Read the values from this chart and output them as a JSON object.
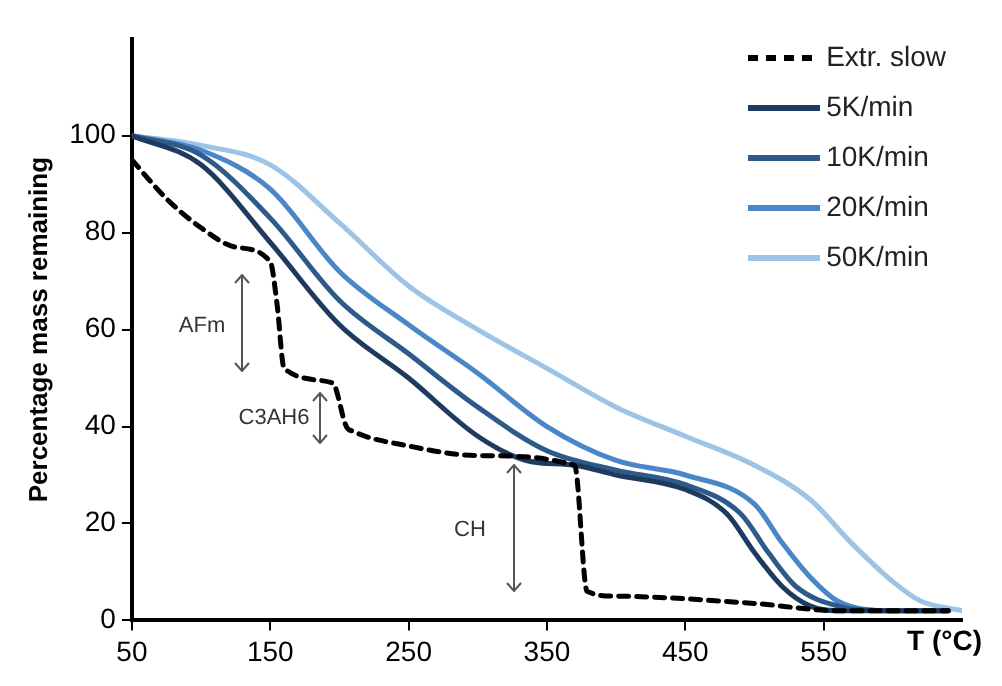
{
  "chart_data": {
    "type": "line",
    "xlabel": "T (°C)",
    "ylabel": "Percentage mass remaining",
    "xlim": [
      50,
      650
    ],
    "xticks": [
      50,
      150,
      250,
      350,
      450,
      550
    ],
    "ylim": [
      0,
      120
    ],
    "yticks": [
      0,
      20,
      40,
      60,
      80,
      100
    ],
    "grid": false,
    "legend": "top right",
    "marker": "none",
    "line_style": "solid",
    "annotations": [
      "AFm",
      "C3AH6",
      "CH"
    ],
    "series": [
      {
        "name": "Extr. slow",
        "color": "#000000",
        "line_style": "dashed",
        "x": [
          50,
          75,
          100,
          125,
          150,
          155,
          160,
          195,
          205,
          210,
          250,
          300,
          370,
          379,
          400,
          500,
          560,
          640
        ],
        "values": [
          95,
          87,
          81,
          77,
          74,
          65,
          52,
          49,
          40,
          39,
          36,
          34,
          32,
          6,
          5,
          3.5,
          2,
          2
        ]
      },
      {
        "name": "5K/min",
        "color": "#1f3a5f",
        "x": [
          50,
          100,
          150,
          200,
          250,
          300,
          335,
          370,
          400,
          450,
          480,
          500,
          520,
          540,
          560,
          640
        ],
        "values": [
          100,
          94,
          78,
          61,
          50,
          38,
          33,
          32,
          30,
          27,
          22,
          14,
          7,
          3,
          2,
          2
        ]
      },
      {
        "name": "10K/min",
        "color": "#2e5a8a",
        "x": [
          50,
          100,
          150,
          200,
          250,
          300,
          350,
          400,
          450,
          490,
          510,
          530,
          560,
          600,
          640
        ],
        "values": [
          100,
          96,
          83,
          66,
          55,
          44,
          35,
          31,
          28,
          22,
          14,
          7,
          3,
          2,
          2
        ]
      },
      {
        "name": "20K/min",
        "color": "#4a86c8",
        "x": [
          50,
          100,
          150,
          200,
          250,
          300,
          350,
          400,
          450,
          500,
          520,
          540,
          560,
          600,
          640
        ],
        "values": [
          100,
          97,
          89,
          72,
          61,
          51,
          40,
          33,
          30,
          24,
          16,
          9,
          4,
          2,
          2
        ]
      },
      {
        "name": "50K/min",
        "color": "#9dc3e6",
        "x": [
          50,
          100,
          150,
          200,
          250,
          300,
          350,
          400,
          450,
          500,
          540,
          570,
          600,
          620,
          650
        ],
        "values": [
          100,
          98,
          94,
          82,
          69,
          60,
          52,
          44,
          38,
          32,
          25,
          16,
          8,
          4,
          2
        ]
      }
    ]
  }
}
